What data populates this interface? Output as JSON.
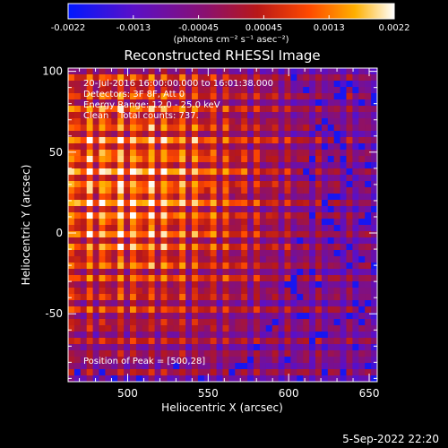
{
  "chart_data": {
    "type": "heatmap",
    "title": "Reconstructed RHESSI Image",
    "xlabel": "Heliocentric X (arcsec)",
    "ylabel": "Heliocentric Y (arcsec)",
    "xlim": [
      463,
      655
    ],
    "ylim": [
      -92,
      102
    ],
    "xticks": [
      500,
      550,
      600,
      650
    ],
    "yticks": [
      -50,
      0,
      50,
      100
    ],
    "colorbar": {
      "min": -0.0022,
      "max": 0.0022,
      "ticks": [
        "-0.0022",
        "-0.0013",
        "-0.00045",
        "0.00045",
        "0.0013",
        "0.0022"
      ],
      "units": "(photons cm⁻² s⁻¹ asec⁻²)",
      "colors": [
        "#0018ff",
        "#5a10c8",
        "#8a1070",
        "#b81818",
        "#ff4a00",
        "#ffb000",
        "#ffffff"
      ]
    },
    "annotations": {
      "time_range": "20-Jul-2016 16:00:00.000 to 16:01:38.000",
      "detectors": "Detectors: 3F 8F, Att 0",
      "energy_range": "Energy Range: 12.0 - 25.0 keV",
      "method": "Clean",
      "total_counts": "Total counts: 737.",
      "peak_position": "Position of Peak = [500,28]"
    },
    "peak": {
      "x": 500,
      "y": 28
    }
  },
  "footer": {
    "timestamp": "5-Sep-2022 22:20"
  }
}
